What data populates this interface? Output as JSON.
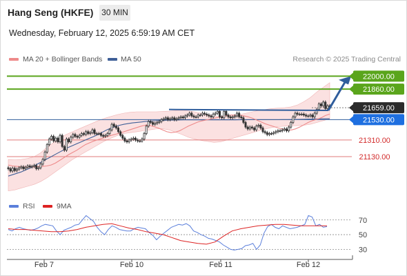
{
  "header": {
    "title": "Hang Seng (HKFE)",
    "timeframe_button": "30 MIN",
    "datetime": "Wednesday, February 12, 2025 6:59:19 AM CET"
  },
  "legend": {
    "ma20": "MA 20 + Bollinger Bands",
    "ma50": "MA 50",
    "credit": "Research © 2025 Trading Central"
  },
  "rsi_legend": {
    "rsi": "RSI",
    "ma": "9MA"
  },
  "colors": {
    "candle": "#333333",
    "bollinger_fill": "#f8c8c8",
    "ma20": "#ee8a8a",
    "ma50": "#3e5f97",
    "resistance": "#5aa51c",
    "support": "#e07a7a",
    "pivot": "#2f5d9c",
    "current": "#333333",
    "rsi": "#5b7fdb",
    "rsi_ma": "#dd2222"
  },
  "chart_data": [
    {
      "type": "candlestick",
      "title": "Hang Seng (HKFE)",
      "timeframe": "30 MIN",
      "x_labels": [
        "Feb 7",
        "Feb 10",
        "Feb 11",
        "Feb 12"
      ],
      "ylim": [
        20750,
        22100
      ],
      "current_price": 21659.0,
      "levels": [
        {
          "label": "22000.00",
          "value": 22000,
          "kind": "resistance"
        },
        {
          "label": "21860.00",
          "value": 21860,
          "kind": "resistance"
        },
        {
          "label": "21530.00",
          "value": 21530,
          "kind": "pivot"
        },
        {
          "label": "21310.00",
          "value": 21310,
          "kind": "support"
        },
        {
          "label": "21130.00",
          "value": 21130,
          "kind": "support"
        }
      ],
      "close": [
        21000,
        20975,
        21005,
        20980,
        20995,
        21010,
        21020,
        21000,
        21015,
        21030,
        21020,
        21025,
        21035,
        21000,
        21010,
        21050,
        21100,
        21180,
        21260,
        21320,
        21350,
        21300,
        21330,
        21290,
        21360,
        21240,
        21200,
        21320,
        21290,
        21340,
        21370,
        21350,
        21340,
        21360,
        21380,
        21370,
        21400,
        21380,
        21390,
        21420,
        21380,
        21380,
        21380,
        21360,
        21350,
        21360,
        21380,
        21420,
        21480,
        21460,
        21440,
        21400,
        21360,
        21330,
        21300,
        21290,
        21310,
        21320,
        21330,
        21310,
        21300,
        21300,
        21320,
        21380,
        21460,
        21510,
        21500,
        21480,
        21490,
        21500,
        21510,
        21530,
        21540,
        21550,
        21530,
        21540,
        21550,
        21530,
        21540,
        21550,
        21560,
        21550,
        21570,
        21580,
        21600,
        21570,
        21560,
        21560,
        21580,
        21580,
        21600,
        21590,
        21580,
        21570,
        21560,
        21590,
        21600,
        21620,
        21560,
        21550,
        21620,
        21580,
        21560,
        21550,
        21560,
        21570,
        21600,
        21560,
        21550,
        21500,
        21450,
        21430,
        21450,
        21440,
        21420,
        21460,
        21470,
        21440,
        21400,
        21390,
        21370,
        21380,
        21380,
        21390,
        21400,
        21410,
        21410,
        21420,
        21430,
        21410,
        21450,
        21500,
        21560,
        21600,
        21590,
        21590,
        21590,
        21580,
        21570,
        21570,
        21580,
        21560,
        21600,
        21640,
        21700,
        21680,
        21720,
        21650,
        21680,
        21659
      ],
      "ma20": [
        21040,
        21030,
        21025,
        21020,
        21018,
        21018,
        21020,
        21022,
        21025,
        21030,
        21040,
        21060,
        21090,
        21120,
        21150,
        21175,
        21200,
        21230,
        21260,
        21280,
        21300,
        21315,
        21330,
        21345,
        21360,
        21372,
        21385,
        21400,
        21415,
        21430,
        21445,
        21460,
        21470,
        21468,
        21455,
        21440,
        21420,
        21400,
        21390,
        21395,
        21410,
        21435,
        21460,
        21480,
        21500,
        21515,
        21525,
        21535,
        21545,
        21555,
        21565,
        21575,
        21580,
        21580,
        21578,
        21570,
        21560,
        21545,
        21525,
        21505,
        21485,
        21470,
        21455,
        21440,
        21430,
        21420,
        21418,
        21430,
        21450,
        21475,
        21500,
        21520,
        21535,
        21550,
        21575,
        21590
      ],
      "ma50": [
        20920,
        20935,
        20950,
        20965,
        20985,
        21005,
        21030,
        21055,
        21080,
        21105,
        21130,
        21155,
        21180,
        21205,
        21230,
        21250,
        21270,
        21290,
        21310,
        21330,
        21350,
        21370,
        21395,
        21420,
        21440,
        21458,
        21470,
        21480,
        21488,
        21495,
        21500,
        21505,
        21510,
        21514,
        21518,
        21520,
        21522,
        21524,
        21525,
        21526,
        21527,
        21528,
        21528,
        21528,
        21528,
        21528,
        21528,
        21528,
        21528,
        21528,
        21528,
        21528,
        21528,
        21528,
        21529,
        21529,
        21530,
        21530,
        21530,
        21530,
        21530,
        21530,
        21530,
        21530,
        21531,
        21531,
        21532,
        21533,
        21534,
        21535,
        21536,
        21537,
        21538,
        21539,
        21540,
        21540
      ],
      "bollinger_upper": [
        21100,
        21095,
        21100,
        21110,
        21130,
        21170,
        21230,
        21280,
        21330,
        21370,
        21400,
        21430,
        21460,
        21490,
        21520,
        21545,
        21565,
        21585,
        21600,
        21610,
        21615,
        21615,
        21615,
        21615,
        21618,
        21622,
        21628,
        21630,
        21625,
        21615,
        21600,
        21585,
        21570,
        21560,
        21560,
        21570,
        21585,
        21600,
        21615,
        21630,
        21640,
        21650,
        21655,
        21660,
        21668,
        21690,
        21725,
        21770,
        21830,
        21880,
        21930
      ],
      "bollinger_lower": [
        20760,
        20770,
        20790,
        20810,
        20830,
        20860,
        20900,
        20950,
        21000,
        21050,
        21100,
        21140,
        21180,
        21220,
        21260,
        21300,
        21330,
        21360,
        21380,
        21390,
        21400,
        21410,
        21420,
        21430,
        21432,
        21420,
        21395,
        21370,
        21340,
        21320,
        21305,
        21295,
        21285,
        21290,
        21310,
        21330,
        21350,
        21370,
        21390,
        21410,
        21430,
        21445,
        21455,
        21460,
        21462,
        21465,
        21470,
        21480,
        21500,
        21520,
        21540
      ]
    },
    {
      "type": "line",
      "title": "RSI",
      "series": [
        {
          "name": "RSI",
          "values": [
            57,
            55,
            58,
            60,
            58,
            57,
            56,
            57,
            59,
            62,
            64,
            63,
            62,
            55,
            50,
            56,
            58,
            60,
            63,
            64,
            70,
            76,
            72,
            68,
            60,
            54,
            50,
            57,
            62,
            60,
            57,
            56,
            55,
            55,
            58,
            60,
            59,
            58,
            53,
            49,
            43,
            48,
            52,
            56,
            60,
            62,
            64,
            63,
            65,
            62,
            55,
            53,
            50,
            48,
            45,
            44,
            42,
            40,
            36,
            33,
            30,
            29,
            30,
            31,
            35,
            36,
            38,
            30,
            36,
            52,
            61,
            64,
            60,
            58,
            62,
            60,
            58,
            59,
            60,
            62,
            64,
            76,
            74,
            62,
            64,
            60,
            61
          ]
        },
        {
          "name": "9MA",
          "values": [
            58,
            57,
            57,
            56,
            55,
            54,
            54,
            55,
            57,
            60,
            62,
            64,
            65,
            62,
            59,
            57,
            54,
            52,
            50,
            46,
            42,
            40,
            38,
            37,
            40,
            48,
            55,
            58,
            60,
            62,
            63,
            64,
            64,
            63,
            62,
            62,
            62,
            62
          ]
        }
      ],
      "ylim": [
        20,
        82
      ],
      "y_ticks": [
        30,
        50,
        70
      ]
    }
  ]
}
